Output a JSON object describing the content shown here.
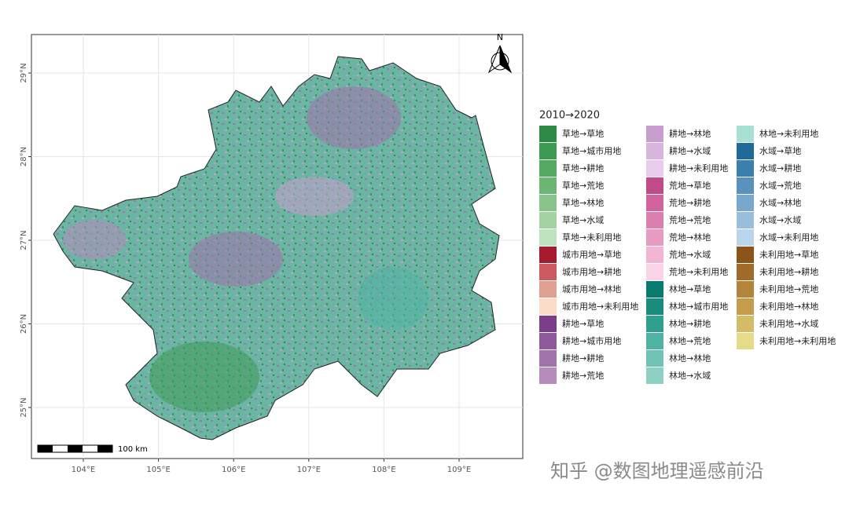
{
  "map": {
    "xticks": [
      {
        "value": 104,
        "label": "104°E"
      },
      {
        "value": 105,
        "label": "105°E"
      },
      {
        "value": 106,
        "label": "106°E"
      },
      {
        "value": 107,
        "label": "107°E"
      },
      {
        "value": 108,
        "label": "108°E"
      },
      {
        "value": 109,
        "label": "109°E"
      }
    ],
    "yticks": [
      {
        "value": 25,
        "label": "25°N"
      },
      {
        "value": 26,
        "label": "26°N"
      },
      {
        "value": 27,
        "label": "27°N"
      },
      {
        "value": 28,
        "label": "28°N"
      },
      {
        "value": 29,
        "label": "29°N"
      }
    ],
    "grid": true,
    "scale_bar": "100 km",
    "north": "N"
  },
  "legend": {
    "title": "2010→2020",
    "columns": [
      [
        {
          "label": "草地→草地",
          "color": "#2e8b47"
        },
        {
          "label": "草地→城市用地",
          "color": "#3d9a52"
        },
        {
          "label": "草地→耕地",
          "color": "#55a862"
        },
        {
          "label": "草地→荒地",
          "color": "#6cb673"
        },
        {
          "label": "草地→林地",
          "color": "#88c48a"
        },
        {
          "label": "草地→水域",
          "color": "#a3d3a3"
        },
        {
          "label": "草地→未利用地",
          "color": "#c1e2bf"
        },
        {
          "label": "城市用地→草地",
          "color": "#a51c2e"
        },
        {
          "label": "城市用地→耕地",
          "color": "#cc5a5e"
        },
        {
          "label": "城市用地→林地",
          "color": "#e0a090"
        },
        {
          "label": "城市用地→未利用地",
          "color": "#fadcc8"
        },
        {
          "label": "耕地→草地",
          "color": "#7b3f8a"
        },
        {
          "label": "耕地→城市用地",
          "color": "#8f5a9c"
        },
        {
          "label": "耕地→耕地",
          "color": "#a173ab"
        },
        {
          "label": "耕地→荒地",
          "color": "#b58cbc"
        }
      ],
      [
        {
          "label": "耕地→林地",
          "color": "#c79ece"
        },
        {
          "label": "耕地→水域",
          "color": "#d8b4de"
        },
        {
          "label": "耕地→未利用地",
          "color": "#e8ccec"
        },
        {
          "label": "荒地→草地",
          "color": "#c04b8a"
        },
        {
          "label": "荒地→耕地",
          "color": "#d1649c"
        },
        {
          "label": "荒地→荒地",
          "color": "#dc7eae"
        },
        {
          "label": "荒地→林地",
          "color": "#e69bc2"
        },
        {
          "label": "荒地→水域",
          "color": "#f0b6d4"
        },
        {
          "label": "荒地→未利用地",
          "color": "#f8d4e6"
        },
        {
          "label": "林地→草地",
          "color": "#087a6e"
        },
        {
          "label": "林地→城市用地",
          "color": "#1a8c7e"
        },
        {
          "label": "林地→耕地",
          "color": "#2fa08f"
        },
        {
          "label": "林地→荒地",
          "color": "#50b2a3"
        },
        {
          "label": "林地→林地",
          "color": "#6fc2b4"
        },
        {
          "label": "林地→水域",
          "color": "#8fd0c5"
        }
      ],
      [
        {
          "label": "林地→未利用地",
          "color": "#a8e0d4"
        },
        {
          "label": "水域→草地",
          "color": "#1f6a9a"
        },
        {
          "label": "水域→耕地",
          "color": "#3a7fae"
        },
        {
          "label": "水域→荒地",
          "color": "#5892bd"
        },
        {
          "label": "水域→林地",
          "color": "#78a8cc"
        },
        {
          "label": "水域→水域",
          "color": "#98bedc"
        },
        {
          "label": "水域→未利用地",
          "color": "#bcd4ec"
        },
        {
          "label": "未利用地→草地",
          "color": "#8c5418"
        },
        {
          "label": "未利用地→耕地",
          "color": "#a06a28"
        },
        {
          "label": "未利用地→荒地",
          "color": "#b4843a"
        },
        {
          "label": "未利用地→林地",
          "color": "#c49c4c"
        },
        {
          "label": "未利用地→水域",
          "color": "#d4bc66"
        },
        {
          "label": "未利用地→未利用地",
          "color": "#e4dc88"
        }
      ]
    ]
  },
  "watermark": "知乎 @数图地理遥感前沿"
}
